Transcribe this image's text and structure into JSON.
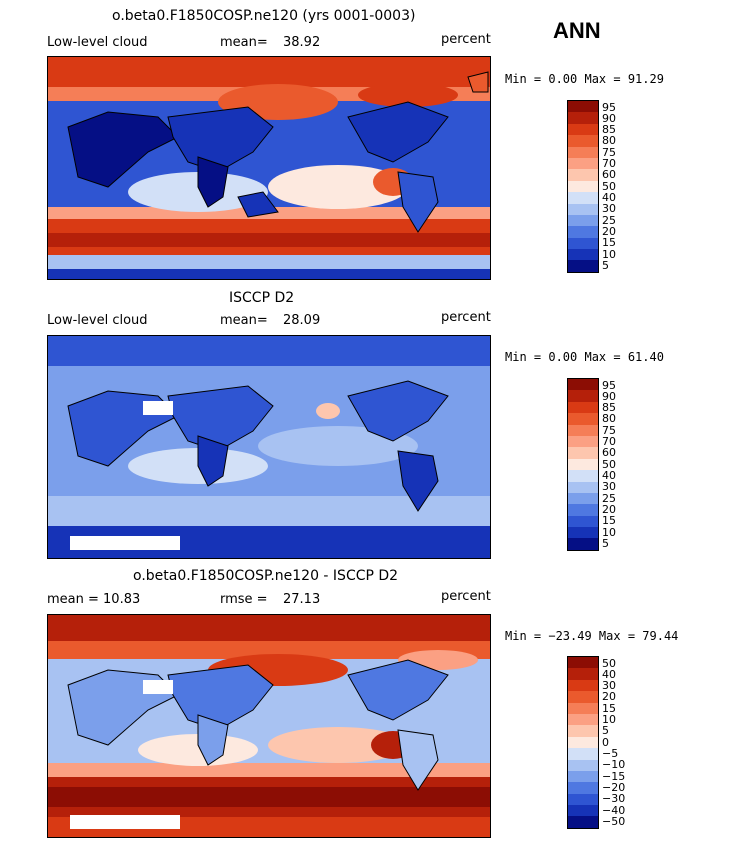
{
  "season": "ANN",
  "panels": [
    {
      "title": "o.beta0.F1850COSP.ne120 (yrs 0001-0003)",
      "left_label": "Low-level cloud",
      "stat_label": "mean=",
      "stat_value": "38.92",
      "units": "percent",
      "minmax": "Min =   0.00 Max =  91.29",
      "colorbar_labels": [
        "95",
        "90",
        "85",
        "80",
        "75",
        "70",
        "60",
        "50",
        "40",
        "30",
        "25",
        "20",
        "15",
        "10",
        "5"
      ]
    },
    {
      "title": "ISCCP D2",
      "left_label": "Low-level cloud",
      "stat_label": "mean=",
      "stat_value": "28.09",
      "units": "percent",
      "minmax": "Min =   0.00 Max =  61.40",
      "colorbar_labels": [
        "95",
        "90",
        "85",
        "80",
        "75",
        "70",
        "60",
        "50",
        "40",
        "30",
        "25",
        "20",
        "15",
        "10",
        "5"
      ]
    },
    {
      "title": "o.beta0.F1850COSP.ne120 - ISCCP D2",
      "left_label": "mean =   10.83",
      "stat_label": "rmse =",
      "stat_value": "27.13",
      "units": "percent",
      "minmax": "Min = −23.49 Max =  79.44",
      "colorbar_labels": [
        "50",
        "40",
        "30",
        "20",
        "15",
        "10",
        "5",
        "0",
        "−5",
        "−10",
        "−15",
        "−20",
        "−30",
        "−40",
        "−50"
      ]
    }
  ],
  "colors": {
    "palette": [
      "#8c0d04",
      "#b5200a",
      "#d93a14",
      "#ea5a2d",
      "#f57e57",
      "#fba083",
      "#fdc6ae",
      "#fde9df",
      "#d2e0f7",
      "#a8c2f2",
      "#7b9feb",
      "#4f78e1",
      "#2f55d2",
      "#1633b7",
      "#050f85"
    ]
  }
}
